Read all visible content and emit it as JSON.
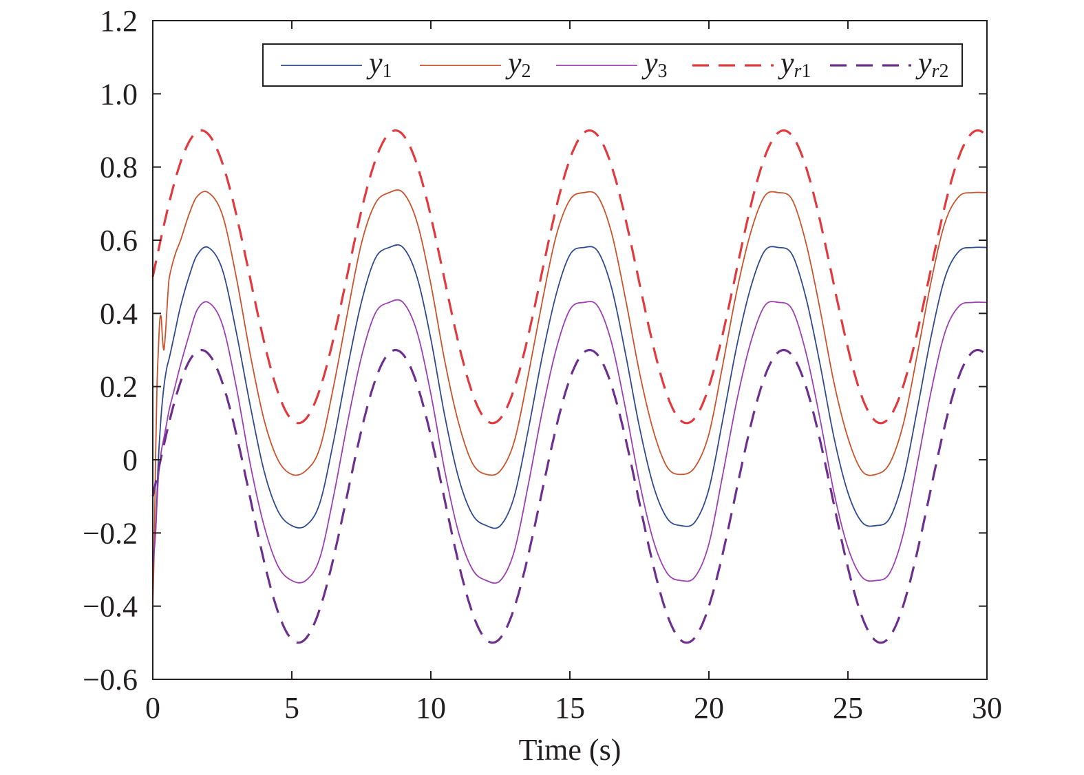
{
  "chart_data": {
    "type": "line",
    "title": "",
    "xlabel": "Time (s)",
    "ylabel": "",
    "xlim": [
      0,
      30
    ],
    "ylim": [
      -0.6,
      1.2
    ],
    "xticks": [
      0,
      5,
      10,
      15,
      20,
      25,
      30
    ],
    "xtick_labels": [
      "0",
      "5",
      "10",
      "15",
      "20",
      "25",
      "30"
    ],
    "yticks": [
      -0.6,
      -0.4,
      -0.2,
      0,
      0.2,
      0.4,
      0.6,
      0.8,
      1.0,
      1.2
    ],
    "ytick_labels": [
      "−0.6",
      "−0.4",
      "−0.2",
      "0",
      "0.2",
      "0.4",
      "0.6",
      "0.8",
      "1.0",
      "1.2"
    ],
    "grid": false,
    "legend_position": "top",
    "series": [
      {
        "name": "y1",
        "label_main": "y",
        "label_sub": "1",
        "sub_italic_prefix": "",
        "color": "#2e4a8e",
        "style": "solid",
        "x": [
          0,
          0.05,
          0.1,
          0.15,
          0.2,
          0.3,
          0.4,
          0.5,
          0.6,
          0.8,
          1.0,
          1.3,
          1.6,
          2.0,
          2.5,
          3.0,
          3.5,
          4.0,
          4.5,
          5.0,
          5.5,
          6.0,
          6.5,
          7.0,
          7.5,
          8.0,
          8.5,
          9.0,
          9.5,
          10.0,
          10.5,
          11.0,
          11.5,
          12.0,
          12.5,
          13.0,
          13.5,
          14.0,
          14.5,
          15.0,
          15.5,
          16.0,
          16.5,
          17.0,
          17.5,
          18.0,
          18.5,
          19.0,
          19.5,
          20.0,
          20.5,
          21.0,
          21.5,
          22.0,
          22.5,
          23.0,
          23.5,
          24.0,
          24.5,
          25.0,
          25.5,
          26.0,
          26.5,
          27.0,
          27.5,
          28.0,
          28.5,
          29.0,
          29.5,
          30.0
        ],
        "y": [
          -0.2,
          -0.2,
          -0.2,
          -0.1,
          0.0,
          0.12,
          0.2,
          0.25,
          0.28,
          0.35,
          0.42,
          0.5,
          0.56,
          0.58,
          0.52,
          0.35,
          0.15,
          -0.03,
          -0.14,
          -0.18,
          -0.18,
          -0.12,
          0.05,
          0.25,
          0.43,
          0.55,
          0.58,
          0.58,
          0.5,
          0.33,
          0.12,
          -0.05,
          -0.15,
          -0.18,
          -0.18,
          -0.1,
          0.08,
          0.28,
          0.45,
          0.56,
          0.58,
          0.57,
          0.47,
          0.29,
          0.09,
          -0.07,
          -0.16,
          -0.18,
          -0.17,
          -0.08,
          0.11,
          0.31,
          0.47,
          0.57,
          0.58,
          0.56,
          0.44,
          0.26,
          0.06,
          -0.09,
          -0.17,
          -0.18,
          -0.16,
          -0.05,
          0.14,
          0.34,
          0.5,
          0.57,
          0.58,
          0.58
        ]
      },
      {
        "name": "y2",
        "label_main": "y",
        "label_sub": "2",
        "sub_italic_prefix": "",
        "color": "#c8532c",
        "style": "solid",
        "x": [
          0,
          0.05,
          0.1,
          0.15,
          0.2,
          0.25,
          0.3,
          0.35,
          0.4,
          0.45,
          0.5,
          0.55,
          0.6,
          0.8,
          1.0,
          1.3,
          1.6,
          2.0,
          2.5,
          3.0,
          3.5,
          4.0,
          4.5,
          5.0,
          5.5,
          6.0,
          6.5,
          7.0,
          7.5,
          8.0,
          8.5,
          9.0,
          9.5,
          10.0,
          10.5,
          11.0,
          11.5,
          12.0,
          12.5,
          13.0,
          13.5,
          14.0,
          14.5,
          15.0,
          15.5,
          16.0,
          16.5,
          17.0,
          17.5,
          18.0,
          18.5,
          19.0,
          19.5,
          20.0,
          20.5,
          21.0,
          21.5,
          22.0,
          22.5,
          23.0,
          23.5,
          24.0,
          24.5,
          25.0,
          25.5,
          26.0,
          26.5,
          27.0,
          27.5,
          28.0,
          28.5,
          29.0,
          29.5,
          30.0
        ],
        "y": [
          -0.4,
          -0.25,
          0.0,
          0.2,
          0.3,
          0.38,
          0.39,
          0.33,
          0.3,
          0.34,
          0.4,
          0.46,
          0.5,
          0.56,
          0.6,
          0.67,
          0.72,
          0.73,
          0.67,
          0.5,
          0.29,
          0.11,
          0.0,
          -0.04,
          -0.03,
          0.03,
          0.2,
          0.4,
          0.59,
          0.7,
          0.73,
          0.73,
          0.65,
          0.48,
          0.27,
          0.1,
          -0.01,
          -0.04,
          -0.03,
          0.05,
          0.23,
          0.43,
          0.61,
          0.71,
          0.73,
          0.72,
          0.62,
          0.44,
          0.24,
          0.08,
          -0.02,
          -0.04,
          -0.02,
          0.07,
          0.26,
          0.46,
          0.62,
          0.72,
          0.73,
          0.71,
          0.59,
          0.41,
          0.21,
          0.06,
          -0.03,
          -0.04,
          -0.01,
          0.1,
          0.29,
          0.49,
          0.65,
          0.72,
          0.73,
          0.73
        ]
      },
      {
        "name": "y3",
        "label_main": "y",
        "label_sub": "3",
        "sub_italic_prefix": "",
        "color": "#9c3fb0",
        "style": "solid",
        "x": [
          0,
          0.05,
          0.1,
          0.2,
          0.3,
          0.4,
          0.5,
          0.6,
          0.8,
          1.0,
          1.3,
          1.6,
          2.0,
          2.5,
          3.0,
          3.5,
          4.0,
          4.5,
          5.0,
          5.5,
          6.0,
          6.5,
          7.0,
          7.5,
          8.0,
          8.5,
          9.0,
          9.5,
          10.0,
          10.5,
          11.0,
          11.5,
          12.0,
          12.5,
          13.0,
          13.5,
          14.0,
          14.5,
          15.0,
          15.5,
          16.0,
          16.5,
          17.0,
          17.5,
          18.0,
          18.5,
          19.0,
          19.5,
          20.0,
          20.5,
          21.0,
          21.5,
          22.0,
          22.5,
          23.0,
          23.5,
          24.0,
          24.5,
          25.0,
          25.5,
          26.0,
          26.5,
          27.0,
          27.5,
          28.0,
          28.5,
          29.0,
          29.5,
          30.0
        ],
        "y": [
          -0.3,
          -0.25,
          -0.2,
          -0.05,
          0.02,
          0.06,
          0.1,
          0.14,
          0.2,
          0.26,
          0.34,
          0.41,
          0.43,
          0.37,
          0.2,
          -0.01,
          -0.18,
          -0.29,
          -0.33,
          -0.33,
          -0.27,
          -0.1,
          0.1,
          0.28,
          0.4,
          0.43,
          0.43,
          0.35,
          0.18,
          -0.03,
          -0.2,
          -0.3,
          -0.33,
          -0.33,
          -0.25,
          -0.07,
          0.13,
          0.3,
          0.41,
          0.43,
          0.42,
          0.32,
          0.14,
          -0.06,
          -0.22,
          -0.31,
          -0.33,
          -0.32,
          -0.23,
          -0.04,
          0.16,
          0.32,
          0.42,
          0.43,
          0.41,
          0.29,
          0.11,
          -0.09,
          -0.24,
          -0.32,
          -0.33,
          -0.31,
          -0.2,
          -0.01,
          0.19,
          0.35,
          0.42,
          0.43,
          0.43
        ]
      },
      {
        "name": "yr1",
        "label_main": "y",
        "label_sub": "1",
        "sub_italic_prefix": "r",
        "color": "#e03a3e",
        "style": "dashed",
        "func": "0.5+0.4*sin(0.9*t)",
        "offset": 0.5,
        "amplitude": 0.4,
        "omega": 0.9
      },
      {
        "name": "yr2",
        "label_main": "y",
        "label_sub": "2",
        "sub_italic_prefix": "r",
        "color": "#6d2f8e",
        "style": "dashed",
        "func": "-0.1+0.4*sin(0.9*t)",
        "offset": -0.1,
        "amplitude": 0.4,
        "omega": 0.9
      }
    ]
  }
}
